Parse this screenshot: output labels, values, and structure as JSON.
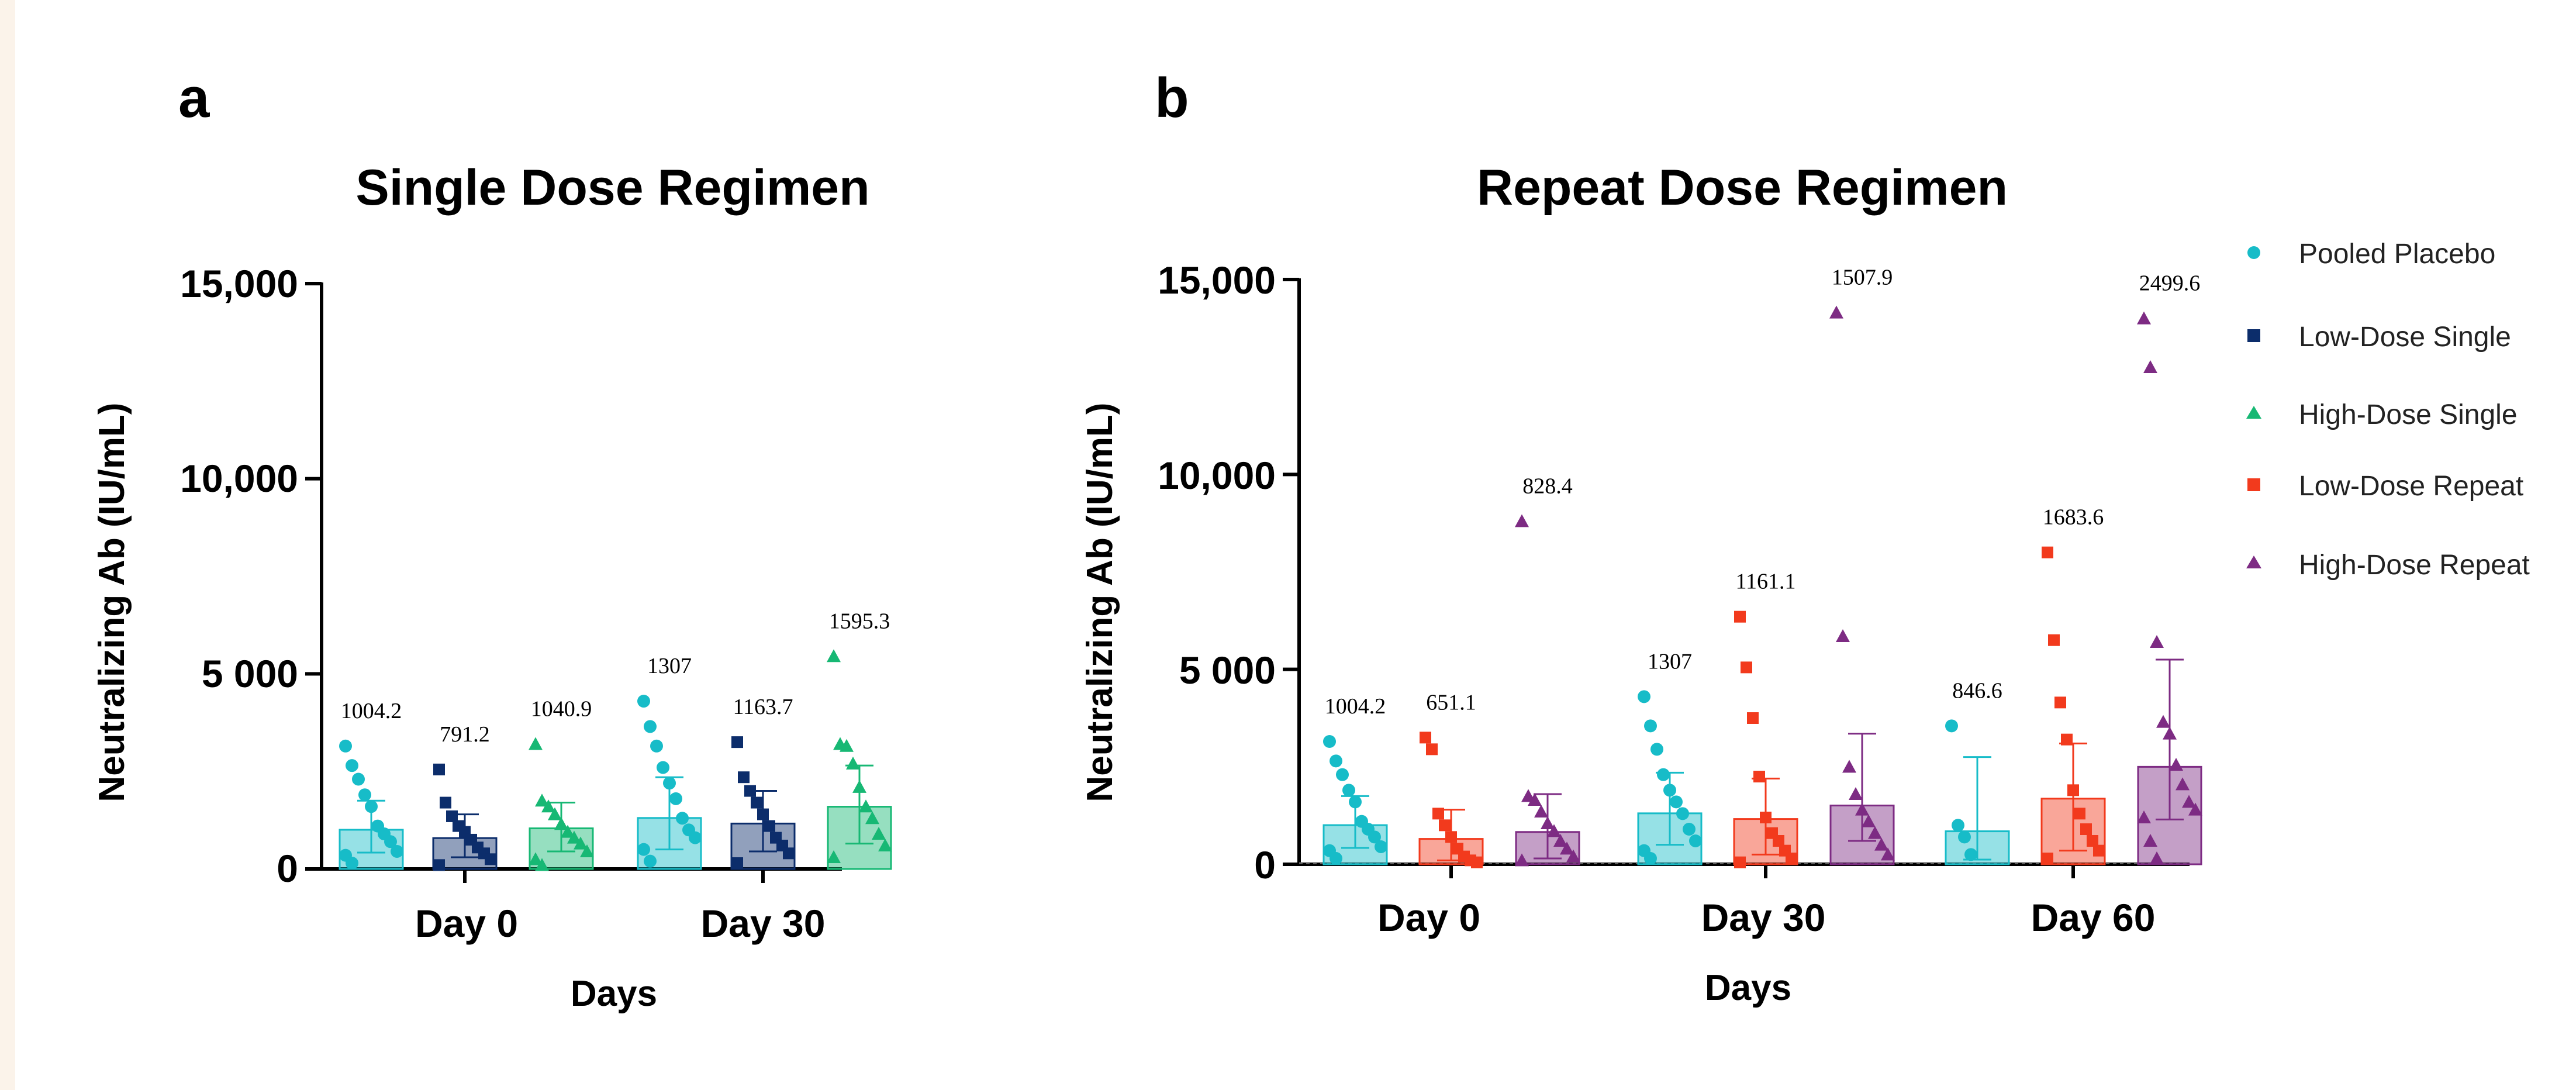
{
  "colors": {
    "Pooled Placebo": "#17bcc8",
    "Low-Dose Single": "#0c2d6b",
    "High-Dose Single": "#17b874",
    "Low-Dose Repeat": "#f23a1d",
    "High-Dose Repeat": "#7d2b83"
  },
  "legend": {
    "items": [
      {
        "name": "Pooled Placebo",
        "marker": "circle",
        "color": "#17bcc8"
      },
      {
        "name": "Low-Dose Single",
        "marker": "square",
        "color": "#0c2d6b"
      },
      {
        "name": "High-Dose Single",
        "marker": "triangle",
        "color": "#17b874"
      },
      {
        "name": "Low-Dose Repeat",
        "marker": "square",
        "color": "#f23a1d"
      },
      {
        "name": "High-Dose Repeat",
        "marker": "triangle",
        "color": "#7d2b83"
      }
    ],
    "placement": "right"
  },
  "chart_data": [
    {
      "type": "bar",
      "panel": "a",
      "title": "Single Dose Regimen",
      "xlabel": "Days",
      "ylabel": "Neutralizing Ab (IU/mL)",
      "ylim": [
        0,
        15000
      ],
      "yticks": [
        0,
        5000,
        10000,
        15000
      ],
      "ytick_labels": [
        "0",
        "5 000",
        "10,000",
        "15,000"
      ],
      "categories": [
        "Day 0",
        "Day 30"
      ],
      "series": [
        {
          "name": "Pooled Placebo",
          "marker": "circle",
          "values": [
            1004.2,
            1307
          ],
          "labels": [
            "1004.2",
            "1307"
          ],
          "error_upper": [
            1750,
            2350
          ],
          "error_lower": [
            420,
            500
          ],
          "points": [
            [
              3150,
              2650,
              2300,
              1900,
              1600,
              1100,
              900,
              700,
              450,
              350,
              150
            ],
            [
              4300,
              3650,
              3150,
              2600,
              2200,
              1800,
              1300,
              1000,
              800,
              500,
              200
            ]
          ]
        },
        {
          "name": "Low-Dose Single",
          "marker": "square",
          "values": [
            791.2,
            1163.7
          ],
          "labels": [
            "791.2",
            "1163.7"
          ],
          "error_upper": [
            1400,
            2000
          ],
          "error_lower": [
            300,
            450
          ],
          "points": [
            [
              2550,
              1700,
              1350,
              1100,
              950,
              750,
              550,
              400,
              250,
              100
            ],
            [
              3250,
              2350,
              2000,
              1700,
              1400,
              1100,
              800,
              600,
              400,
              150
            ]
          ]
        },
        {
          "name": "High-Dose Single",
          "marker": "triangle",
          "values": [
            1040.9,
            1595.3
          ],
          "labels": [
            "1040.9",
            "1595.3"
          ],
          "error_upper": [
            1700,
            2650
          ],
          "error_lower": [
            450,
            650
          ],
          "points": [
            [
              3200,
              1750,
              1600,
              1400,
              1150,
              950,
              800,
              650,
              450,
              250,
              100
            ],
            [
              5450,
              3200,
              3150,
              2700,
              2100,
              1600,
              1300,
              900,
              600,
              300
            ]
          ]
        }
      ]
    },
    {
      "type": "bar",
      "panel": "b",
      "title": "Repeat Dose Regimen",
      "xlabel": "Days",
      "ylabel": "Neutralizing Ab (IU/mL)",
      "ylim": [
        0,
        15000
      ],
      "yticks": [
        0,
        5000,
        10000,
        15000
      ],
      "ytick_labels": [
        "0",
        "5 000",
        "10,000",
        "15,000"
      ],
      "categories": [
        "Day 0",
        "Day 30",
        "Day 60"
      ],
      "series": [
        {
          "name": "Pooled Placebo",
          "marker": "circle",
          "values": [
            1004.2,
            1307,
            846.6
          ],
          "labels": [
            "1004.2",
            "1307",
            "846.6"
          ],
          "error_upper": [
            1750,
            2350,
            2750
          ],
          "error_lower": [
            420,
            500,
            120
          ],
          "points": [
            [
              3150,
              2650,
              2300,
              1900,
              1600,
              1100,
              900,
              700,
              450,
              350,
              150
            ],
            [
              4300,
              3550,
              2950,
              2300,
              1900,
              1600,
              1300,
              900,
              600,
              350,
              150
            ],
            [
              3550,
              1000,
              700,
              250
            ]
          ]
        },
        {
          "name": "Low-Dose Repeat",
          "marker": "square",
          "values": [
            651.1,
            1161.1,
            1683.6
          ],
          "labels": [
            "651.1",
            "1161.1",
            "1683.6"
          ],
          "error_upper": [
            1400,
            2200,
            3100
          ],
          "error_lower": [
            100,
            250,
            350
          ],
          "points": [
            [
              3250,
              2950,
              1300,
              1000,
              700,
              400,
              200,
              100,
              50
            ],
            [
              6350,
              5050,
              3750,
              2250,
              1200,
              800,
              600,
              350,
              150,
              50
            ],
            [
              8000,
              5750,
              4150,
              3200,
              1900,
              1300,
              900,
              600,
              350,
              150
            ]
          ]
        },
        {
          "name": "High-Dose Repeat",
          "marker": "triangle",
          "values": [
            828.4,
            1507.9,
            2499.6
          ],
          "labels": [
            "828.4",
            "1507.9",
            "2499.6"
          ],
          "error_upper": [
            1800,
            3350,
            5250
          ],
          "error_lower": [
            150,
            600,
            1150
          ],
          "points": [
            [
              8800,
              1750,
              1650,
              1350,
              1050,
              850,
              600,
              400,
              200,
              100
            ],
            [
              14150,
              5850,
              2500,
              1800,
              1400,
              1100,
              800,
              500,
              250
            ],
            [
              14000,
              12750,
              5700,
              3650,
              3350,
              2550,
              2050,
              1600,
              1400,
              1200,
              600,
              150
            ]
          ]
        }
      ]
    }
  ],
  "panel_letters": [
    "a",
    "b"
  ],
  "titles": [
    "Single Dose Regimen",
    "Repeat Dose Regimen"
  ]
}
